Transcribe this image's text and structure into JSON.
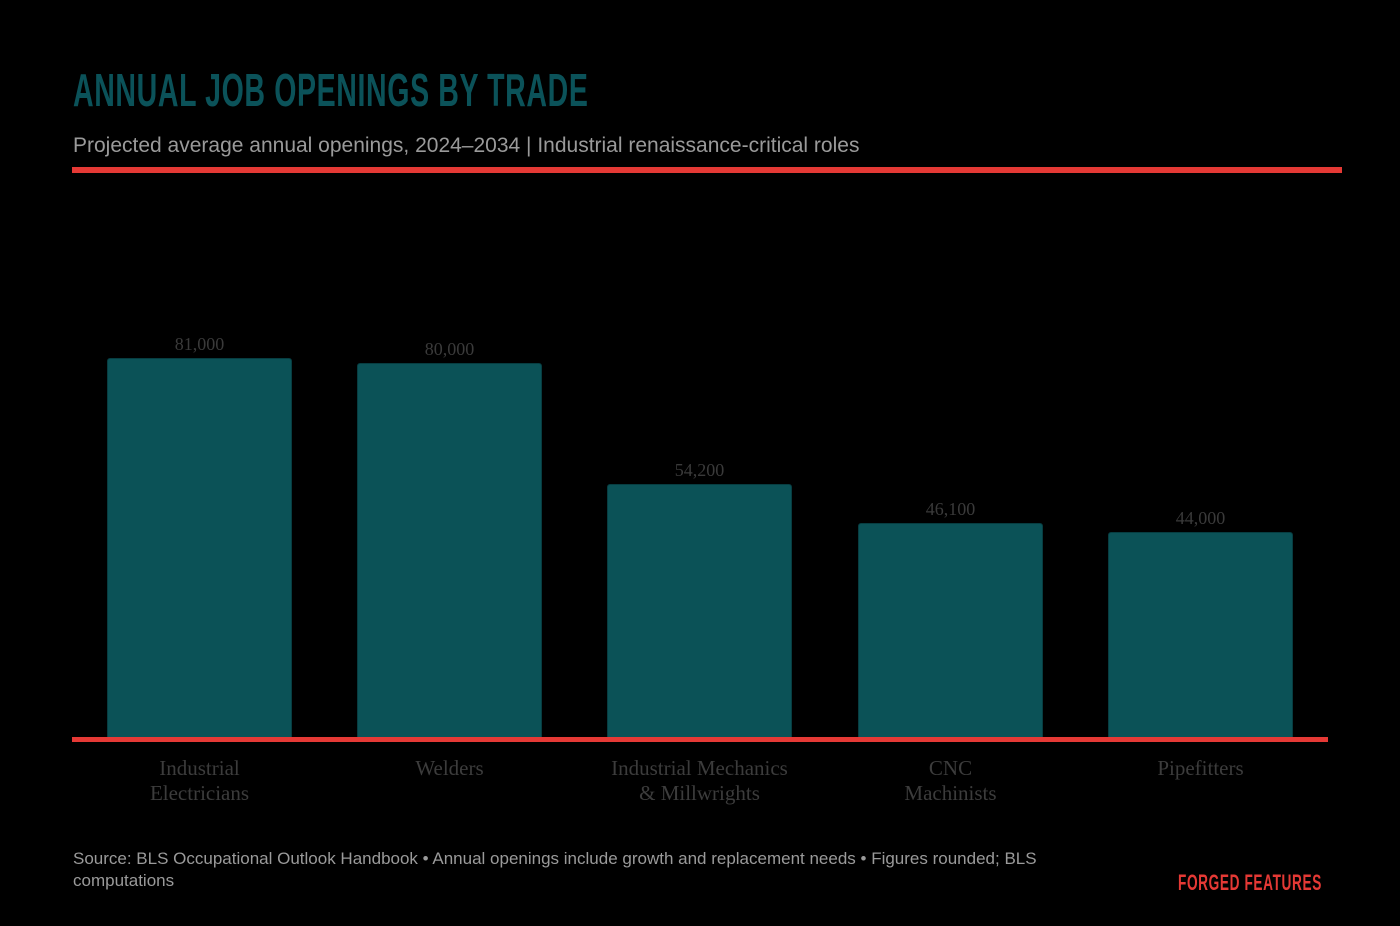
{
  "header": {
    "title": "ANNUAL JOB OPENINGS BY TRADE",
    "subtitle": "Projected average annual openings, 2024–2034 | Industrial renaissance-critical roles"
  },
  "colors": {
    "bar": "#0b5257",
    "title": "#0b5259",
    "accent_rule": "#e53935",
    "background": "#000000",
    "muted_text": "#9a9a9a"
  },
  "chart_data": {
    "type": "bar",
    "title": "ANNUAL JOB OPENINGS BY TRADE",
    "subtitle": "Projected average annual openings, 2024–2034 | Industrial renaissance-critical roles",
    "categories": [
      "Industrial Electricians",
      "Welders",
      "Industrial Mechanics & Millwrights",
      "CNC Machinists",
      "Pipefitters"
    ],
    "values": [
      81000,
      80000,
      54200,
      46100,
      44000
    ],
    "value_labels": [
      "81,000",
      "80,000",
      "54,200",
      "46,100",
      "44,000"
    ],
    "xlabel": "",
    "ylabel": "",
    "ylim": [
      0,
      81000
    ],
    "grid": false,
    "legend": null,
    "data_labels": true
  },
  "axis_labels": [
    "Industrial\nElectricians",
    "Welders",
    "Industrial Mechanics\n& Millwrights",
    "CNC\nMachinists",
    "Pipefitters"
  ],
  "footer": {
    "source": "Source: BLS Occupational Outlook Handbook • Annual openings include growth and replacement needs • Figures rounded; BLS computations",
    "brand": "FORGED FEATURES"
  }
}
